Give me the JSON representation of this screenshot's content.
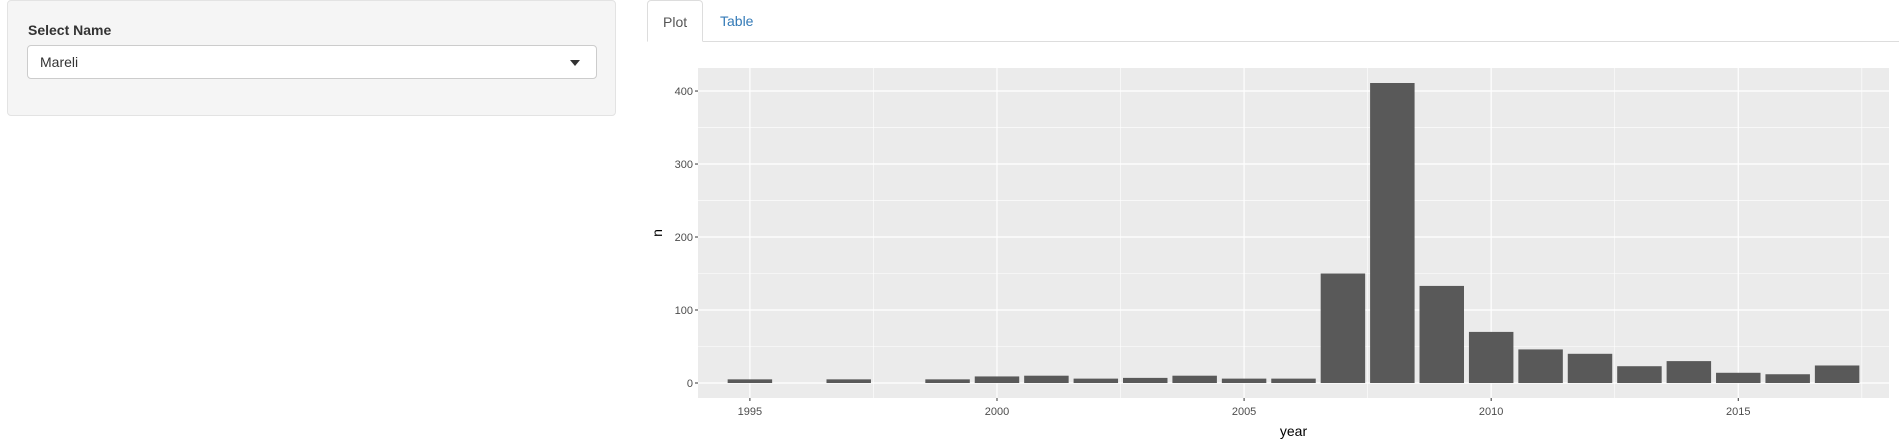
{
  "sidebar": {
    "label": "Select Name",
    "selected_value": "Mareli"
  },
  "tabs": [
    {
      "label": "Plot",
      "active": true
    },
    {
      "label": "Table",
      "active": false
    }
  ],
  "colors": {
    "panel_bg": "#ebebeb",
    "grid": "#ffffff",
    "bar": "#595959",
    "tab_link": "#337ab7"
  },
  "chart_data": {
    "type": "bar",
    "title": "",
    "xlabel": "year",
    "ylabel": "n",
    "x": [
      1995,
      1997,
      1999,
      2000,
      2001,
      2002,
      2003,
      2004,
      2005,
      2006,
      2007,
      2008,
      2009,
      2010,
      2011,
      2012,
      2013,
      2014,
      2015,
      2016,
      2017
    ],
    "values": [
      5,
      5,
      5,
      9,
      10,
      6,
      7,
      10,
      6,
      6,
      150,
      411,
      133,
      70,
      46,
      40,
      23,
      30,
      14,
      12,
      24
    ],
    "xlim": [
      1993.95,
      2018.05
    ],
    "ylim": [
      -20.55,
      431.55
    ],
    "x_ticks": [
      1995,
      2000,
      2005,
      2010,
      2015
    ],
    "x_tick_labels": [
      "1995",
      "2000",
      "2005",
      "2010",
      "2015"
    ],
    "y_ticks": [
      0,
      100,
      200,
      300,
      400
    ],
    "y_tick_labels": [
      "0",
      "100",
      "200",
      "300",
      "400"
    ],
    "grid": true,
    "legend": "none"
  }
}
